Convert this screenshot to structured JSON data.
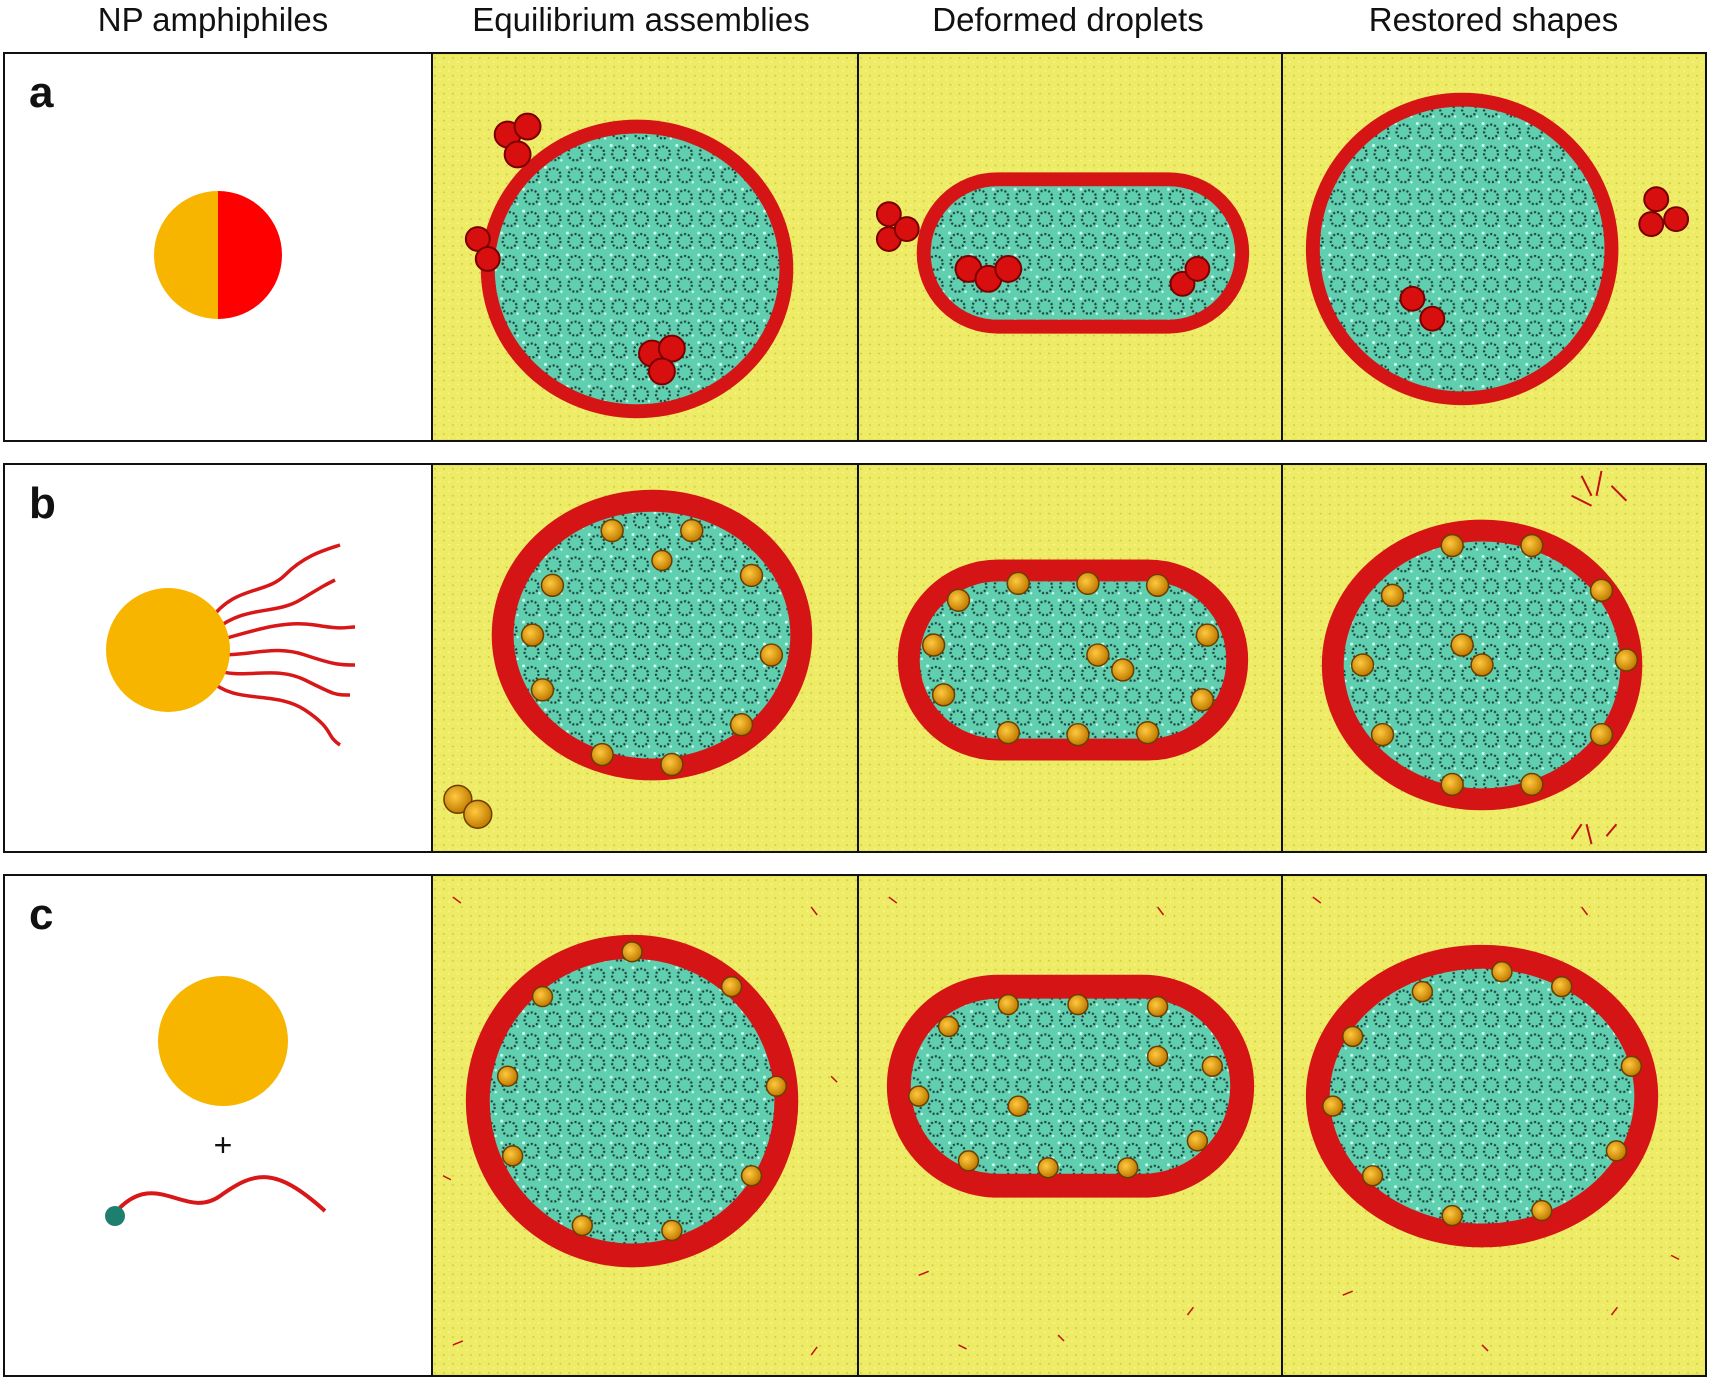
{
  "columns": [
    "NP amphiphiles",
    "Equilibrium assemblies",
    "Deformed droplets",
    "Restored shapes"
  ],
  "rows": [
    {
      "label": "a",
      "schematic": "janus-nanoparticle"
    },
    {
      "label": "b",
      "schematic": "tethered-nanoparticle"
    },
    {
      "label": "c",
      "schematic": "nanoparticle-plus-surfactant",
      "plus": "+"
    }
  ],
  "colors": {
    "background": "#eeea62",
    "droplet": "#5fcfb0",
    "shell": "#d81818",
    "nanoparticle": "#f7b500",
    "janus_red": "#ff0000",
    "head": "#1e7f6e"
  }
}
